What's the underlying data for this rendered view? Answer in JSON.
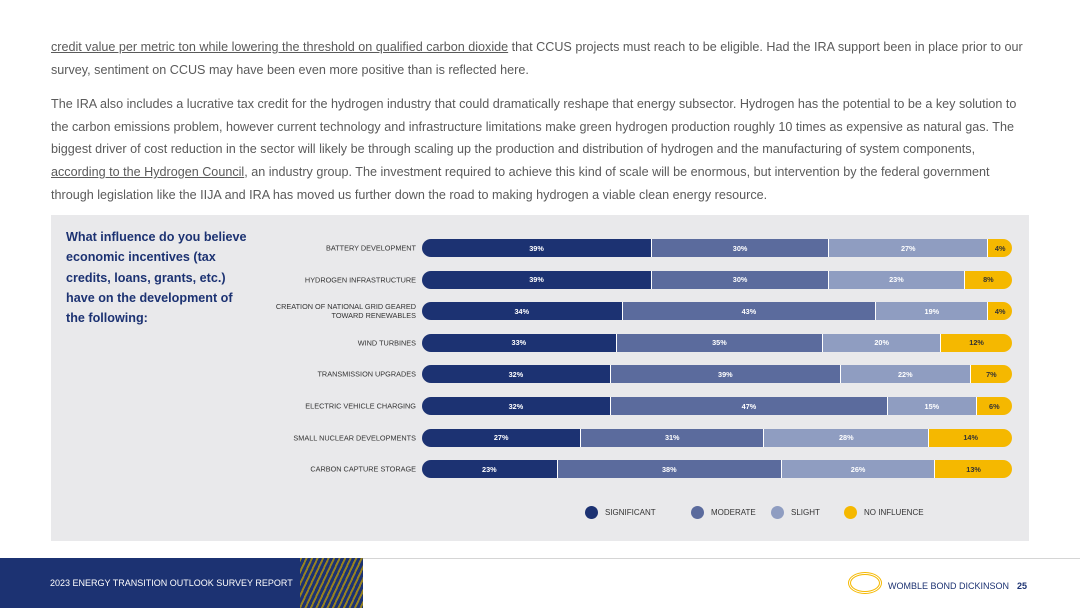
{
  "paragraphs": [
    {
      "runs": [
        {
          "text": "credit value per metric ton while lowering the threshold on qualified carbon dioxide",
          "underline": true
        },
        {
          "text": " that CCUS projects must reach to be eligible. Had the IRA support been in place prior to our survey, sentiment on CCUS may have been even more positive than is reflected here."
        }
      ]
    },
    {
      "runs": [
        {
          "text": "The IRA also includes a lucrative tax credit for the hydrogen industry that could dramatically reshape that energy subsector. Hydrogen has the potential to be a key solution to the carbon emissions problem, however current technology and infrastructure limitations make green hydrogen production roughly 10 times as expensive as natural gas. The biggest driver of cost reduction in the sector will likely be through scaling up the production and distribution of hydrogen and the manufacturing of system components, "
        },
        {
          "text": "according to the Hydrogen Council",
          "underline": true
        },
        {
          "text": ", an industry group. The investment required to achieve this kind of scale will be enormous, but intervention by the federal government through legislation like the IIJA and IRA has moved us further down the road to making hydrogen a viable clean energy resource."
        }
      ]
    }
  ],
  "chart_data": {
    "type": "stacked-bar",
    "orientation": "horizontal",
    "title": "What influence do you believe economic incentives (tax credits, loans, grants, etc.) have on the development of the following:",
    "categories": [
      "BATTERY DEVELOPMENT",
      "HYDROGEN INFRASTRUCTURE",
      "CREATION OF NATIONAL GRID GEARED TOWARD RENEWABLES",
      "WIND TURBINES",
      "TRANSMISSION UPGRADES",
      "ELECTRIC VEHICLE CHARGING",
      "SMALL NUCLEAR DEVELOPMENTS",
      "CARBON CAPTURE STORAGE"
    ],
    "series": [
      {
        "name": "SIGNIFICANT",
        "color": "#1c3272",
        "values": [
          39,
          39,
          34,
          33,
          32,
          32,
          27,
          23
        ],
        "value_labels": [
          "39%",
          "39%",
          "34%",
          "33%",
          "32%",
          "32%",
          "27%",
          "23%"
        ]
      },
      {
        "name": "MODERATE",
        "color": "#5b6b9d",
        "values": [
          30,
          30,
          43,
          35,
          39,
          47,
          31,
          38
        ],
        "value_labels": [
          "30%",
          "30%",
          "43%",
          "35%",
          "39%",
          "47%",
          "31%",
          "38%"
        ]
      },
      {
        "name": "SLIGHT",
        "color": "#8f9dc1",
        "values": [
          27,
          23,
          19,
          20,
          22,
          15,
          28,
          26
        ],
        "value_labels": [
          "27%",
          "23%",
          "19%",
          "20%",
          "22%",
          "15%",
          "28%",
          "26%"
        ]
      },
      {
        "name": "NO INFLUENCE",
        "color": "#f5b800",
        "values": [
          4,
          8,
          4,
          12,
          7,
          6,
          14,
          13
        ],
        "value_labels": [
          "4%",
          "8%",
          "4%",
          "12%",
          "7%",
          "6%",
          "14%",
          "13%"
        ]
      }
    ]
  },
  "footer": {
    "report": "2023 ENERGY TRANSITION OUTLOOK SURVEY REPORT",
    "brand": "WOMBLE BOND DICKINSON",
    "page": "25"
  }
}
